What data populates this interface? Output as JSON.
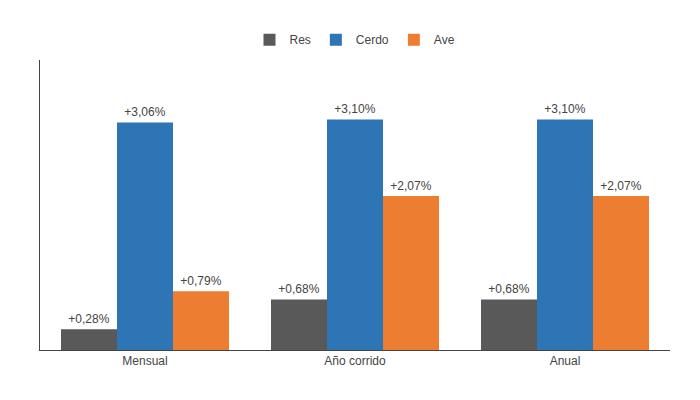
{
  "chart_data": {
    "type": "bar",
    "categories": [
      "Mensual",
      "Año corrido",
      "Anual"
    ],
    "series": [
      {
        "name": "Res",
        "color": "#595959",
        "values": [
          0.28,
          0.68,
          0.68
        ],
        "value_labels": [
          "+0,28%",
          "+0,68%",
          "+0,68%"
        ]
      },
      {
        "name": "Cerdo",
        "color": "#2E75B6",
        "values": [
          3.06,
          3.1,
          3.1
        ],
        "value_labels": [
          "+3,06%",
          "+3,10%",
          "+3,10%"
        ]
      },
      {
        "name": "Ave",
        "color": "#ED7D31",
        "values": [
          0.79,
          2.07,
          2.07
        ],
        "value_labels": [
          "+0,79%",
          "+2,07%",
          "+2,07%"
        ]
      }
    ],
    "ylim": [
      0,
      3.9
    ],
    "grid": false,
    "legend": "top",
    "data_labels": true,
    "tick_labels": "x"
  }
}
